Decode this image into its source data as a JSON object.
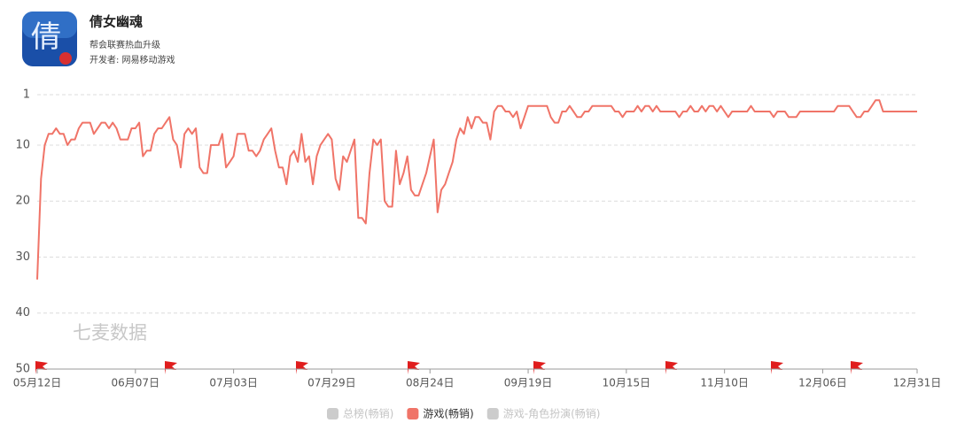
{
  "header": {
    "title": "倩女幽魂",
    "subtitle": "帮会联赛热血升级",
    "developer": "开发者: 网易移动游戏"
  },
  "chart_data": {
    "type": "line",
    "watermark": "七麦数据",
    "categories": [
      "05月12日",
      null,
      null,
      null,
      null,
      null,
      null,
      null,
      null,
      null,
      null,
      null,
      null,
      null,
      null,
      null,
      null,
      null,
      null,
      null,
      null,
      null,
      null,
      null,
      null,
      null,
      "06月07日",
      null,
      null,
      null,
      null,
      null,
      null,
      null,
      null,
      null,
      null,
      null,
      null,
      null,
      null,
      null,
      null,
      null,
      null,
      null,
      null,
      null,
      null,
      null,
      null,
      null,
      "07月03日",
      null,
      null,
      null,
      null,
      null,
      null,
      null,
      null,
      null,
      null,
      null,
      null,
      null,
      null,
      null,
      null,
      null,
      null,
      null,
      null,
      null,
      null,
      null,
      null,
      null,
      "07月29日",
      null,
      null,
      null,
      null,
      null,
      null,
      null,
      null,
      null,
      null,
      null,
      null,
      null,
      null,
      null,
      null,
      null,
      null,
      null,
      null,
      null,
      null,
      null,
      null,
      null,
      "08月24日",
      null,
      null,
      null,
      null,
      null,
      null,
      null,
      null,
      null,
      null,
      null,
      null,
      null,
      null,
      null,
      null,
      null,
      null,
      null,
      null,
      null,
      null,
      null,
      null,
      null,
      "09月19日",
      null,
      null,
      null,
      null,
      null,
      null,
      null,
      null,
      null,
      null,
      null,
      null,
      null,
      null,
      null,
      null,
      null,
      null,
      null,
      null,
      null,
      null,
      null,
      null,
      null,
      "10月15日",
      null,
      null,
      null,
      null,
      null,
      null,
      null,
      null,
      null,
      null,
      null,
      null,
      null,
      null,
      null,
      null,
      null,
      null,
      null,
      null,
      null,
      null,
      null,
      null,
      null,
      "11月10日",
      null,
      null,
      null,
      null,
      null,
      null,
      null,
      null,
      null,
      null,
      null,
      null,
      null,
      null,
      null,
      null,
      null,
      null,
      null,
      null,
      null,
      null,
      null,
      null,
      null,
      "12月06日",
      null,
      null,
      null,
      null,
      null,
      null,
      null,
      null,
      null,
      null,
      null,
      null,
      null,
      null,
      null,
      null,
      null,
      null,
      null,
      null,
      null,
      null,
      null,
      null,
      "12月31日"
    ],
    "series": [
      {
        "name": "游戏(畅销)",
        "color": "#f07468",
        "values": [
          34,
          16,
          10,
          8,
          8,
          7,
          8,
          8,
          10,
          9,
          9,
          7,
          6,
          6,
          6,
          8,
          7,
          6,
          6,
          7,
          6,
          7,
          9,
          9,
          9,
          7,
          7,
          6,
          12,
          11,
          11,
          8,
          7,
          7,
          6,
          5,
          9,
          10,
          14,
          8,
          7,
          8,
          7,
          14,
          15,
          15,
          10,
          10,
          10,
          8,
          14,
          13,
          12,
          8,
          8,
          8,
          11,
          11,
          12,
          11,
          9,
          8,
          7,
          11,
          14,
          14,
          17,
          12,
          11,
          13,
          8,
          13,
          12,
          17,
          12,
          10,
          9,
          8,
          9,
          16,
          18,
          12,
          13,
          11,
          9,
          23,
          23,
          24,
          15,
          9,
          10,
          9,
          20,
          21,
          21,
          11,
          17,
          15,
          12,
          18,
          19,
          19,
          17,
          15,
          12,
          9,
          22,
          18,
          17,
          15,
          13,
          9,
          7,
          8,
          5,
          7,
          5,
          5,
          6,
          6,
          9,
          4,
          3,
          3,
          4,
          4,
          5,
          4,
          7,
          5,
          3,
          3,
          3,
          3,
          3,
          3,
          5,
          6,
          6,
          4,
          4,
          3,
          4,
          5,
          5,
          4,
          4,
          3,
          3,
          3,
          3,
          3,
          3,
          4,
          4,
          5,
          4,
          4,
          4,
          3,
          4,
          3,
          3,
          4,
          3,
          4,
          4,
          4,
          4,
          4,
          5,
          4,
          4,
          3,
          4,
          4,
          3,
          4,
          3,
          3,
          4,
          3,
          4,
          5,
          4,
          4,
          4,
          4,
          4,
          3,
          4,
          4,
          4,
          4,
          4,
          5,
          4,
          4,
          4,
          5,
          5,
          5,
          4,
          4,
          4,
          4,
          4,
          4,
          4,
          4,
          4,
          4,
          3,
          3,
          3,
          3,
          4,
          5,
          5,
          4,
          4,
          3,
          2,
          2,
          4,
          4,
          4,
          4,
          4,
          4,
          4,
          4,
          4,
          4
        ]
      }
    ],
    "legend": [
      {
        "name": "总榜(畅销)",
        "color": "#cccccc"
      },
      {
        "name": "游戏(畅销)",
        "color": "#f07468"
      },
      {
        "name": "游戏-角色扮演(畅销)",
        "color": "#cccccc"
      }
    ],
    "ylim": [
      1,
      50
    ],
    "yticks": [
      1,
      10,
      20,
      30,
      40,
      50
    ],
    "y_inverted": true,
    "grid": true
  }
}
